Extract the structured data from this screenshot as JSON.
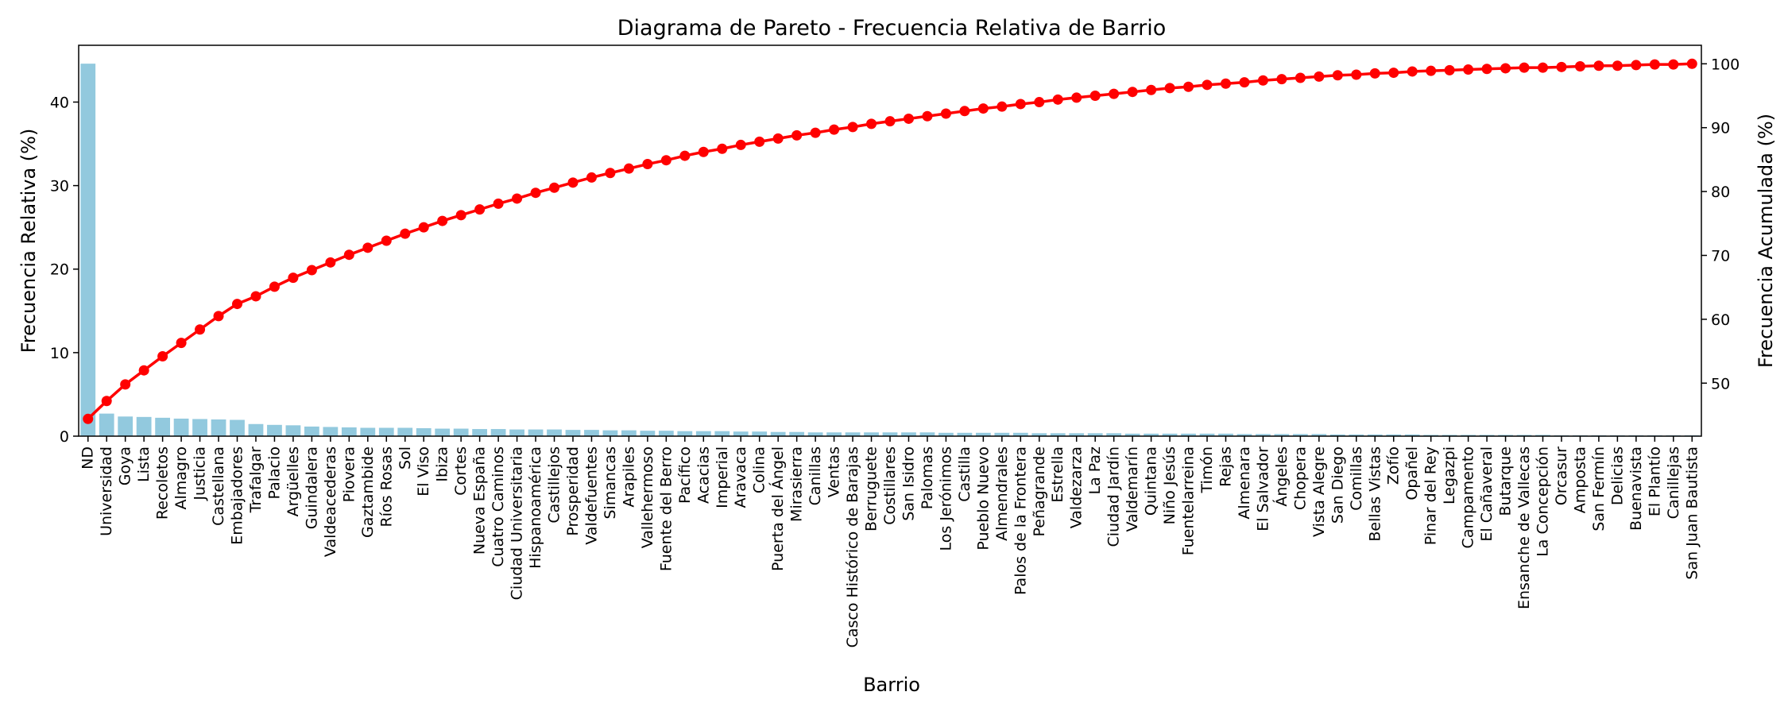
{
  "chart_data": {
    "type": "bar",
    "title": "Diagrama de Pareto - Frecuencia Relativa de Barrio",
    "xlabel": "Barrio",
    "ylabel": "Frecuencia Relativa (%)",
    "y2label": "Frecuencia Acumulada (%)",
    "ylim": [
      0,
      46.8
    ],
    "y2lim": [
      41.7,
      102.9
    ],
    "yticks": [
      0,
      10,
      20,
      30,
      40
    ],
    "y2ticks": [
      50,
      60,
      70,
      80,
      90,
      100
    ],
    "grid": false,
    "bar_color": "#92c9de",
    "line_color": "#ff0000",
    "categories": [
      "ND",
      "Universidad",
      "Goya",
      "Lista",
      "Recoletos",
      "Almagro",
      "Justicia",
      "Castellana",
      "Embajadores",
      "Trafalgar",
      "Palacio",
      "Argüelles",
      "Guindalera",
      "Valdeacederas",
      "Piovera",
      "Gaztambide",
      "Ríos Rosas",
      "Sol",
      "El Viso",
      "Ibiza",
      "Cortes",
      "Nueva España",
      "Cuatro Caminos",
      "Ciudad Universitaria",
      "Hispanoamérica",
      "Castillejos",
      "Prosperidad",
      "Valdefuentes",
      "Simancas",
      "Arapiles",
      "Vallehermoso",
      "Fuente del Berro",
      "Pacífico",
      "Acacias",
      "Imperial",
      "Aravaca",
      "Colina",
      "Puerta del Ángel",
      "Mirasierra",
      "Canillas",
      "Ventas",
      "Casco Histórico de Barajas",
      "Berruguete",
      "Costillares",
      "San Isidro",
      "Palomas",
      "Los Jerónimos",
      "Castilla",
      "Pueblo Nuevo",
      "Almendrales",
      "Palos de la Frontera",
      "Peñagrande",
      "Estrella",
      "Valdezarza",
      "La Paz",
      "Ciudad Jardín",
      "Valdemarín",
      "Quintana",
      "Niño Jesús",
      "Fuentelarreina",
      "Timón",
      "Rejas",
      "Almenara",
      "El Salvador",
      "Ángeles",
      "Chopera",
      "Vista Alegre",
      "San Diego",
      "Comillas",
      "Bellas Vistas",
      "Zofío",
      "Opañel",
      "Pinar del Rey",
      "Legazpi",
      "Campamento",
      "El Cañaveral",
      "Butarque",
      "Ensanche de Vallecas",
      "La Concepción",
      "Orcasur",
      "Amposta",
      "San Fermín",
      "Delicias",
      "Buenavista",
      "El Plantío",
      "Canillejas",
      "San Juan Bautista"
    ],
    "series": [
      {
        "type": "bar",
        "values": [
          44.6,
          2.7,
          2.35,
          2.3,
          2.2,
          2.1,
          2.05,
          2.0,
          1.95,
          1.45,
          1.35,
          1.3,
          1.15,
          1.1,
          1.05,
          1.0,
          1.0,
          1.0,
          0.95,
          0.9,
          0.9,
          0.85,
          0.85,
          0.8,
          0.8,
          0.8,
          0.75,
          0.75,
          0.7,
          0.7,
          0.65,
          0.65,
          0.6,
          0.6,
          0.6,
          0.55,
          0.55,
          0.5,
          0.5,
          0.45,
          0.45,
          0.45,
          0.45,
          0.45,
          0.45,
          0.45,
          0.4,
          0.4,
          0.4,
          0.4,
          0.4,
          0.35,
          0.35,
          0.35,
          0.35,
          0.35,
          0.3,
          0.3,
          0.3,
          0.3,
          0.3,
          0.3,
          0.25,
          0.25,
          0.25,
          0.25,
          0.25,
          0.2,
          0.2,
          0.2,
          0.2,
          0.2,
          0.15,
          0.15,
          0.15,
          0.15,
          0.15,
          0.15,
          0.15,
          0.1,
          0.1,
          0.1,
          0.1,
          0.1,
          0.1,
          0.1,
          0.1
        ]
      },
      {
        "type": "line",
        "axis": "right",
        "values": [
          44.4,
          47.2,
          49.8,
          52.0,
          54.2,
          56.3,
          58.4,
          60.5,
          62.4,
          63.6,
          65.1,
          66.5,
          67.7,
          68.9,
          70.1,
          71.2,
          72.3,
          73.4,
          74.4,
          75.4,
          76.3,
          77.2,
          78.1,
          78.9,
          79.8,
          80.6,
          81.4,
          82.2,
          82.9,
          83.6,
          84.3,
          84.9,
          85.6,
          86.2,
          86.7,
          87.3,
          87.8,
          88.3,
          88.8,
          89.2,
          89.7,
          90.1,
          90.6,
          91.0,
          91.4,
          91.8,
          92.2,
          92.6,
          93.0,
          93.3,
          93.7,
          94.0,
          94.4,
          94.7,
          95.0,
          95.3,
          95.6,
          95.9,
          96.2,
          96.4,
          96.7,
          96.9,
          97.1,
          97.4,
          97.6,
          97.8,
          98.0,
          98.2,
          98.3,
          98.5,
          98.6,
          98.8,
          98.9,
          99.0,
          99.1,
          99.2,
          99.3,
          99.4,
          99.4,
          99.5,
          99.6,
          99.7,
          99.7,
          99.8,
          99.9,
          99.9,
          100.0
        ]
      }
    ]
  }
}
